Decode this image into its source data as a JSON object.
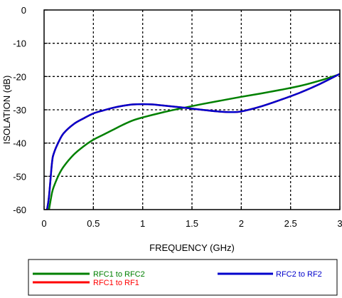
{
  "chart_data": {
    "type": "line",
    "title": "",
    "xlabel": "FREQUENCY (GHz)",
    "ylabel": "ISOLATION (dB)",
    "xlim": [
      0,
      3
    ],
    "ylim": [
      -60,
      0
    ],
    "x_ticks": [
      0,
      0.5,
      1,
      1.5,
      2,
      2.5,
      3
    ],
    "x_tick_labels": [
      "0",
      "0.5",
      "1",
      "1.5",
      "2",
      "2.5",
      "3"
    ],
    "y_ticks": [
      0,
      -10,
      -20,
      -30,
      -40,
      -50,
      -60
    ],
    "y_tick_labels": [
      "0",
      "-10",
      "-20",
      "-30",
      "-40",
      "-50",
      "-60"
    ],
    "grid": true,
    "grid_style": "dashed",
    "legend_position": "bottom",
    "series": [
      {
        "name": "RFC1 to RFC2",
        "color": "#008000",
        "x": [
          0.05,
          0.08,
          0.1,
          0.15,
          0.2,
          0.3,
          0.4,
          0.5,
          0.6,
          0.7,
          0.8,
          0.9,
          1.0,
          1.2,
          1.4,
          1.6,
          1.8,
          2.0,
          2.2,
          2.4,
          2.6,
          2.8,
          3.0
        ],
        "y": [
          -60,
          -55,
          -53,
          -49.5,
          -47,
          -43.5,
          -41,
          -39,
          -37.5,
          -36,
          -34.5,
          -33.2,
          -32.3,
          -30.8,
          -29.5,
          -28.3,
          -27.2,
          -26.1,
          -25.1,
          -24.0,
          -22.8,
          -21.2,
          -19.3
        ]
      },
      {
        "name": "RFC1 to RF1",
        "color": "#ff0000",
        "x": [
          0.03,
          0.05,
          0.08,
          0.1,
          0.15,
          0.2,
          0.3,
          0.4,
          0.5,
          0.6,
          0.7,
          0.8,
          0.9,
          1.0,
          1.1,
          1.2,
          1.4,
          1.6,
          1.8,
          1.9,
          2.0,
          2.2,
          2.4,
          2.6,
          2.8,
          3.0
        ],
        "y": [
          -60,
          -56,
          -46,
          -43,
          -39.5,
          -37,
          -34.3,
          -32.6,
          -31.1,
          -30.2,
          -29.4,
          -28.8,
          -28.4,
          -28.3,
          -28.4,
          -28.7,
          -29.3,
          -30.0,
          -30.6,
          -30.7,
          -30.5,
          -29.0,
          -27.0,
          -24.8,
          -22.2,
          -19.2
        ]
      },
      {
        "name": "RFC2 to RF2",
        "color": "#0000cc",
        "x": [
          0.03,
          0.05,
          0.08,
          0.1,
          0.15,
          0.2,
          0.3,
          0.4,
          0.5,
          0.6,
          0.7,
          0.8,
          0.9,
          1.0,
          1.1,
          1.2,
          1.4,
          1.6,
          1.8,
          1.9,
          2.0,
          2.2,
          2.4,
          2.6,
          2.8,
          3.0
        ],
        "y": [
          -60,
          -56,
          -46,
          -43,
          -39.5,
          -37,
          -34.3,
          -32.6,
          -31.1,
          -30.2,
          -29.4,
          -28.8,
          -28.4,
          -28.3,
          -28.4,
          -28.7,
          -29.3,
          -30.0,
          -30.6,
          -30.7,
          -30.5,
          -29.0,
          -27.0,
          -24.8,
          -22.2,
          -19.2
        ]
      }
    ]
  }
}
